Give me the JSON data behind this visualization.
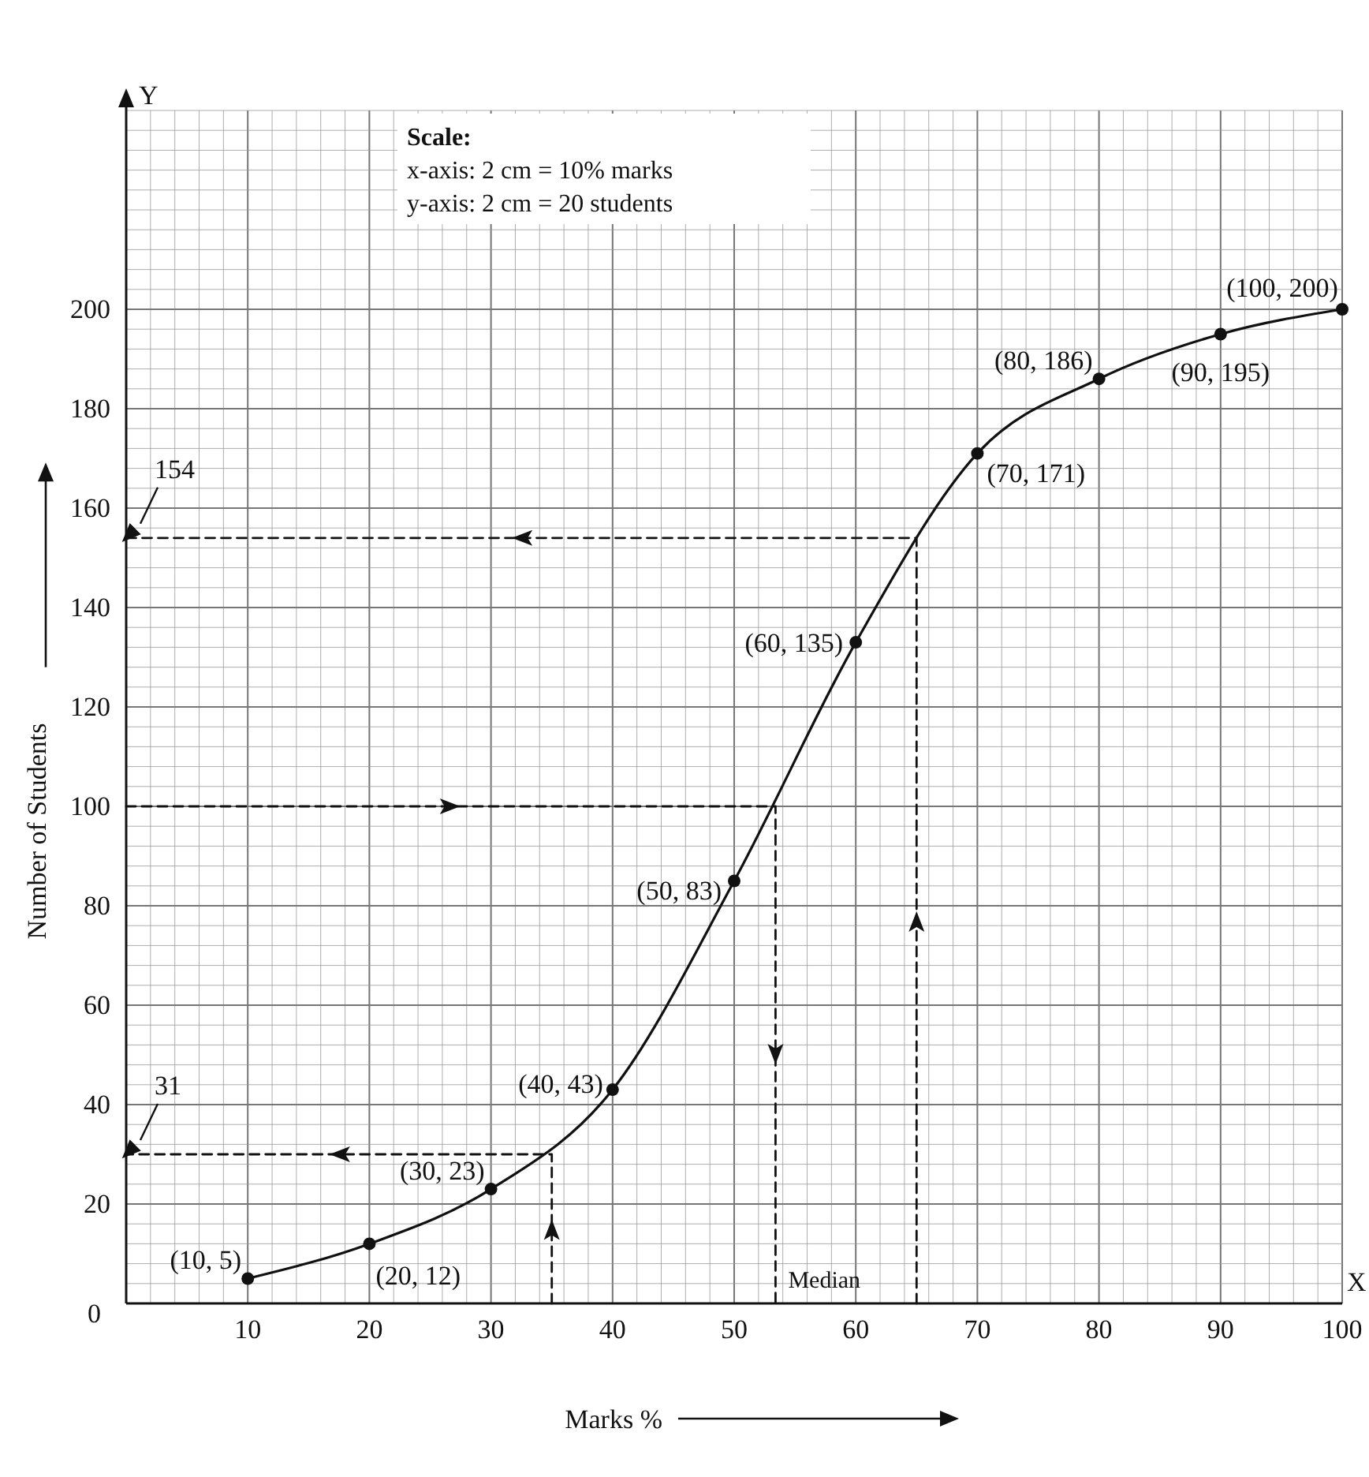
{
  "chart_data": {
    "type": "line",
    "xlabel": "Marks %",
    "ylabel": "Number of Students",
    "xlim": [
      0,
      100
    ],
    "ylim": [
      0,
      240
    ],
    "xticks": [
      10,
      20,
      30,
      40,
      50,
      60,
      70,
      80,
      90,
      100
    ],
    "yticks": [
      0,
      20,
      40,
      60,
      80,
      100,
      120,
      140,
      160,
      180,
      200
    ],
    "grid": true,
    "series": [
      {
        "color": "#111111",
        "x": [
          10,
          20,
          30,
          40,
          50,
          60,
          70,
          80,
          90,
          100
        ],
        "values": [
          5,
          12,
          23,
          43,
          85,
          133,
          171,
          186,
          195,
          200
        ],
        "marker": "circle",
        "line_style": "solid"
      },
      {
        "type": "line",
        "color": "#111111",
        "x": [
          65,
          65,
          0
        ],
        "values": [
          0,
          154,
          154
        ],
        "marker": "none",
        "line_style": "dashed"
      },
      {
        "type": "line",
        "color": "#111111",
        "x": [
          0,
          53.4,
          53.4
        ],
        "values": [
          100,
          100,
          0
        ],
        "marker": "none",
        "line_style": "dashed"
      },
      {
        "type": "line",
        "color": "#111111",
        "x": [
          35,
          35,
          0
        ],
        "values": [
          0,
          30,
          30
        ],
        "marker": "none",
        "line_style": "dashed"
      }
    ],
    "annotations": [
      {
        "text": "(10, 5)",
        "x": 10,
        "y": 5
      },
      {
        "text": "(20, 12)",
        "x": 20,
        "y": 12
      },
      {
        "text": "(30, 23)",
        "x": 30,
        "y": 23
      },
      {
        "text": "(40, 43)",
        "x": 40,
        "y": 43
      },
      {
        "text": "(50, 83)",
        "x": 50,
        "y": 85
      },
      {
        "text": "(60, 135)",
        "x": 60,
        "y": 133
      },
      {
        "text": "(70, 171)",
        "x": 70,
        "y": 171
      },
      {
        "text": "(80, 186)",
        "x": 80,
        "y": 186
      },
      {
        "text": "(90, 195)",
        "x": 90,
        "y": 195
      },
      {
        "text": "(100, 200)",
        "x": 100,
        "y": 200
      },
      {
        "text": "154",
        "x": 0,
        "y": 154
      },
      {
        "text": "31",
        "x": 0,
        "y": 30
      },
      {
        "text": "Median",
        "x": 53.4,
        "y": 0
      },
      "Scale:",
      "x-axis: 2 cm = 10% marks",
      "y-axis: 2 cm = 20 students",
      "X",
      "Y",
      "0"
    ]
  }
}
